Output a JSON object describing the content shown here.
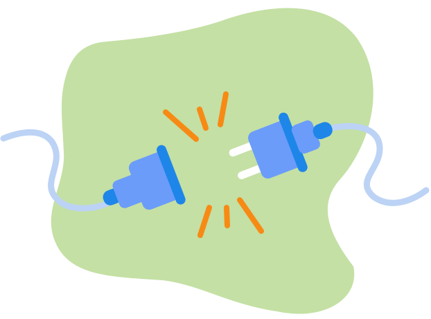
{
  "illustration": {
    "subject": "disconnected-plug-and-socket",
    "icons": [
      "electric-plug-icon",
      "plug-socket-icon",
      "spark-lines-icon",
      "cable-icon"
    ],
    "colors": {
      "background_blob": "#c4e0a4",
      "cable": "#bcd3f5",
      "plug_body": "#6b9cf9",
      "plug_accent": "#1e86e8",
      "prong": "#ffffff",
      "spark": "#f78a14"
    }
  }
}
